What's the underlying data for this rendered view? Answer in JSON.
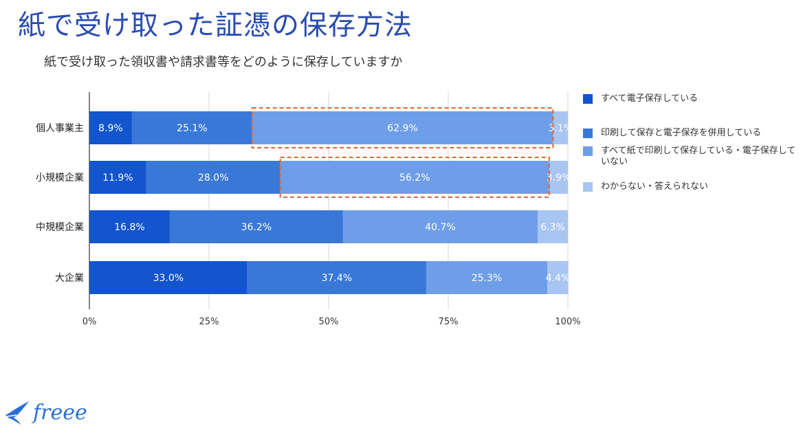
{
  "page": {
    "title": "紙で受け取った証憑の保存方法",
    "subtitle": "紙で受け取った領収書や請求書等をどのように保存していますか"
  },
  "brand": {
    "name": "freee",
    "color": "#2a6fd6"
  },
  "chart_data": {
    "type": "bar",
    "orientation": "horizontal",
    "stacked": true,
    "percent": true,
    "title": "紙で受け取った領収書や請求書等をどのように保存していますか",
    "categories": [
      "個人事業主",
      "小規模企業",
      "中規模企業",
      "大企業"
    ],
    "series": [
      {
        "name": "すべて電子保存している",
        "color": "#1255cc",
        "values": [
          8.9,
          11.9,
          16.8,
          33.0
        ]
      },
      {
        "name": "印刷して保存と電子保存を併用している",
        "color": "#3a78d8",
        "values": [
          25.1,
          28.0,
          36.2,
          37.4
        ]
      },
      {
        "name": "すべて紙で印刷して保存している・電子保存していない",
        "color": "#6e9ee8",
        "values": [
          62.9,
          56.2,
          40.7,
          25.3
        ]
      },
      {
        "name": "わからない・答えられない",
        "color": "#a9c5f2",
        "values": [
          3.1,
          3.9,
          6.3,
          4.4
        ]
      }
    ],
    "xlim": [
      0,
      100
    ],
    "xticks": [
      "0%",
      "25%",
      "50%",
      "75%",
      "100%"
    ],
    "grid": true,
    "legend": "right",
    "highlights": [
      {
        "category": "個人事業主",
        "series": "すべて紙で印刷して保存している・電子保存していない",
        "style": "dashed-orange"
      },
      {
        "category": "小規模企業",
        "series": "すべて紙で印刷して保存している・電子保存していない",
        "style": "dashed-orange"
      }
    ]
  }
}
